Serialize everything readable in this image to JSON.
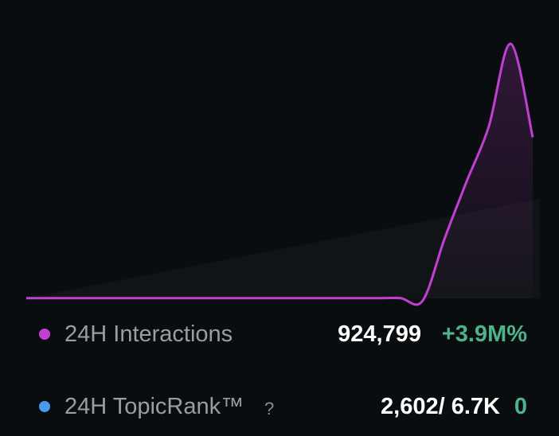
{
  "chart_data": {
    "type": "line",
    "series": [
      {
        "name": "24H Interactions",
        "color": "#c13fd2",
        "values": [
          0,
          0,
          0,
          0,
          0,
          0,
          0,
          0,
          0,
          0,
          0,
          0,
          0,
          0,
          0,
          0,
          0,
          0,
          -1,
          23,
          45,
          66,
          98,
          62
        ]
      }
    ]
  },
  "stats": [
    {
      "label": "24H Interactions",
      "color": "#c13fd2",
      "value": "924,799",
      "change": "+3.9M%"
    },
    {
      "label": "24H TopicRank™",
      "help": "?",
      "color": "#4a9bf0",
      "value": "2,602/ 6.7K",
      "change": "0"
    }
  ]
}
